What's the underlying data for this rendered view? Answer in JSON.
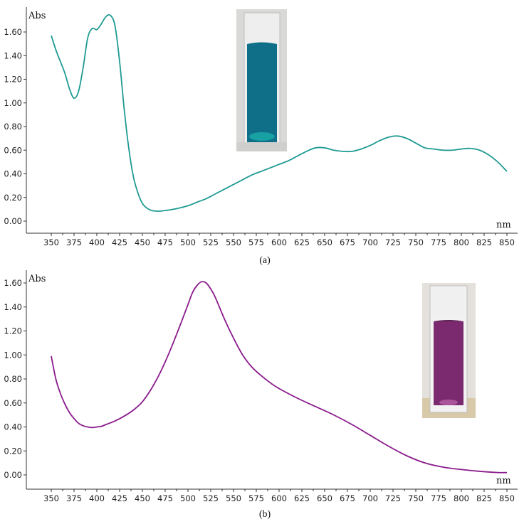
{
  "chart_data": [
    {
      "type": "line",
      "panel_label": "(a)",
      "ylabel": "Abs",
      "xlabel": "nm",
      "xlim": [
        350,
        850
      ],
      "ylim": [
        0,
        1.6
      ],
      "x_ticks": [
        "350",
        "375",
        "400",
        "425",
        "450",
        "475",
        "500",
        "525",
        "550",
        "575",
        "600",
        "625",
        "650",
        "675",
        "700",
        "725",
        "750",
        "775",
        "800",
        "825",
        "850"
      ],
      "y_ticks": [
        "0.00",
        "0.20",
        "0.40",
        "0.60",
        "0.80",
        "1.00",
        "1.20",
        "1.40",
        "1.60"
      ],
      "series": [
        {
          "color": "#1f9a93",
          "x": [
            350,
            355,
            360,
            365,
            370,
            375,
            380,
            385,
            390,
            395,
            400,
            405,
            410,
            415,
            420,
            425,
            430,
            435,
            440,
            445,
            450,
            455,
            460,
            465,
            470,
            475,
            480,
            490,
            500,
            510,
            520,
            530,
            540,
            550,
            560,
            570,
            580,
            590,
            600,
            610,
            620,
            630,
            640,
            650,
            660,
            670,
            680,
            690,
            700,
            710,
            720,
            730,
            740,
            750,
            760,
            770,
            780,
            790,
            800,
            810,
            820,
            830,
            840,
            850
          ],
          "y": [
            1.57,
            1.45,
            1.35,
            1.25,
            1.12,
            1.04,
            1.1,
            1.3,
            1.55,
            1.63,
            1.62,
            1.67,
            1.73,
            1.74,
            1.65,
            1.35,
            0.95,
            0.62,
            0.38,
            0.24,
            0.15,
            0.11,
            0.09,
            0.085,
            0.085,
            0.09,
            0.095,
            0.11,
            0.13,
            0.16,
            0.19,
            0.23,
            0.27,
            0.31,
            0.35,
            0.39,
            0.42,
            0.45,
            0.48,
            0.51,
            0.55,
            0.59,
            0.62,
            0.62,
            0.6,
            0.59,
            0.59,
            0.61,
            0.64,
            0.68,
            0.71,
            0.72,
            0.7,
            0.66,
            0.62,
            0.61,
            0.6,
            0.6,
            0.61,
            0.615,
            0.6,
            0.56,
            0.5,
            0.42
          ]
        }
      ],
      "inset_image": {
        "liquid_color": "#0f6f88",
        "cap_color": "#f1f1f1"
      }
    },
    {
      "type": "line",
      "panel_label": "(b)",
      "ylabel": "Abs",
      "xlabel": "nm",
      "xlim": [
        350,
        850
      ],
      "ylim": [
        0,
        1.6
      ],
      "x_ticks": [
        "350",
        "375",
        "400",
        "425",
        "450",
        "475",
        "500",
        "525",
        "550",
        "575",
        "600",
        "625",
        "650",
        "675",
        "700",
        "725",
        "750",
        "775",
        "800",
        "825",
        "850"
      ],
      "y_ticks": [
        "0.00",
        "0.20",
        "0.40",
        "0.60",
        "0.80",
        "1.00",
        "1.20",
        "1.40",
        "1.60"
      ],
      "series": [
        {
          "color": "#8a1a8c",
          "x": [
            350,
            355,
            360,
            365,
            370,
            375,
            380,
            385,
            390,
            395,
            400,
            405,
            410,
            420,
            430,
            440,
            450,
            460,
            470,
            480,
            490,
            500,
            505,
            510,
            515,
            520,
            525,
            530,
            540,
            550,
            560,
            570,
            580,
            590,
            600,
            620,
            640,
            660,
            680,
            700,
            720,
            740,
            760,
            780,
            800,
            820,
            840,
            850
          ],
          "y": [
            0.99,
            0.8,
            0.68,
            0.59,
            0.52,
            0.47,
            0.43,
            0.41,
            0.4,
            0.395,
            0.4,
            0.405,
            0.42,
            0.45,
            0.49,
            0.54,
            0.61,
            0.72,
            0.86,
            1.03,
            1.22,
            1.42,
            1.52,
            1.58,
            1.61,
            1.6,
            1.55,
            1.48,
            1.3,
            1.14,
            1.0,
            0.9,
            0.83,
            0.77,
            0.72,
            0.64,
            0.57,
            0.5,
            0.42,
            0.33,
            0.24,
            0.16,
            0.1,
            0.065,
            0.045,
            0.03,
            0.02,
            0.02
          ]
        }
      ],
      "inset_image": {
        "liquid_color": "#7b2a6f",
        "cap_color": "#f0f0f0"
      }
    }
  ]
}
